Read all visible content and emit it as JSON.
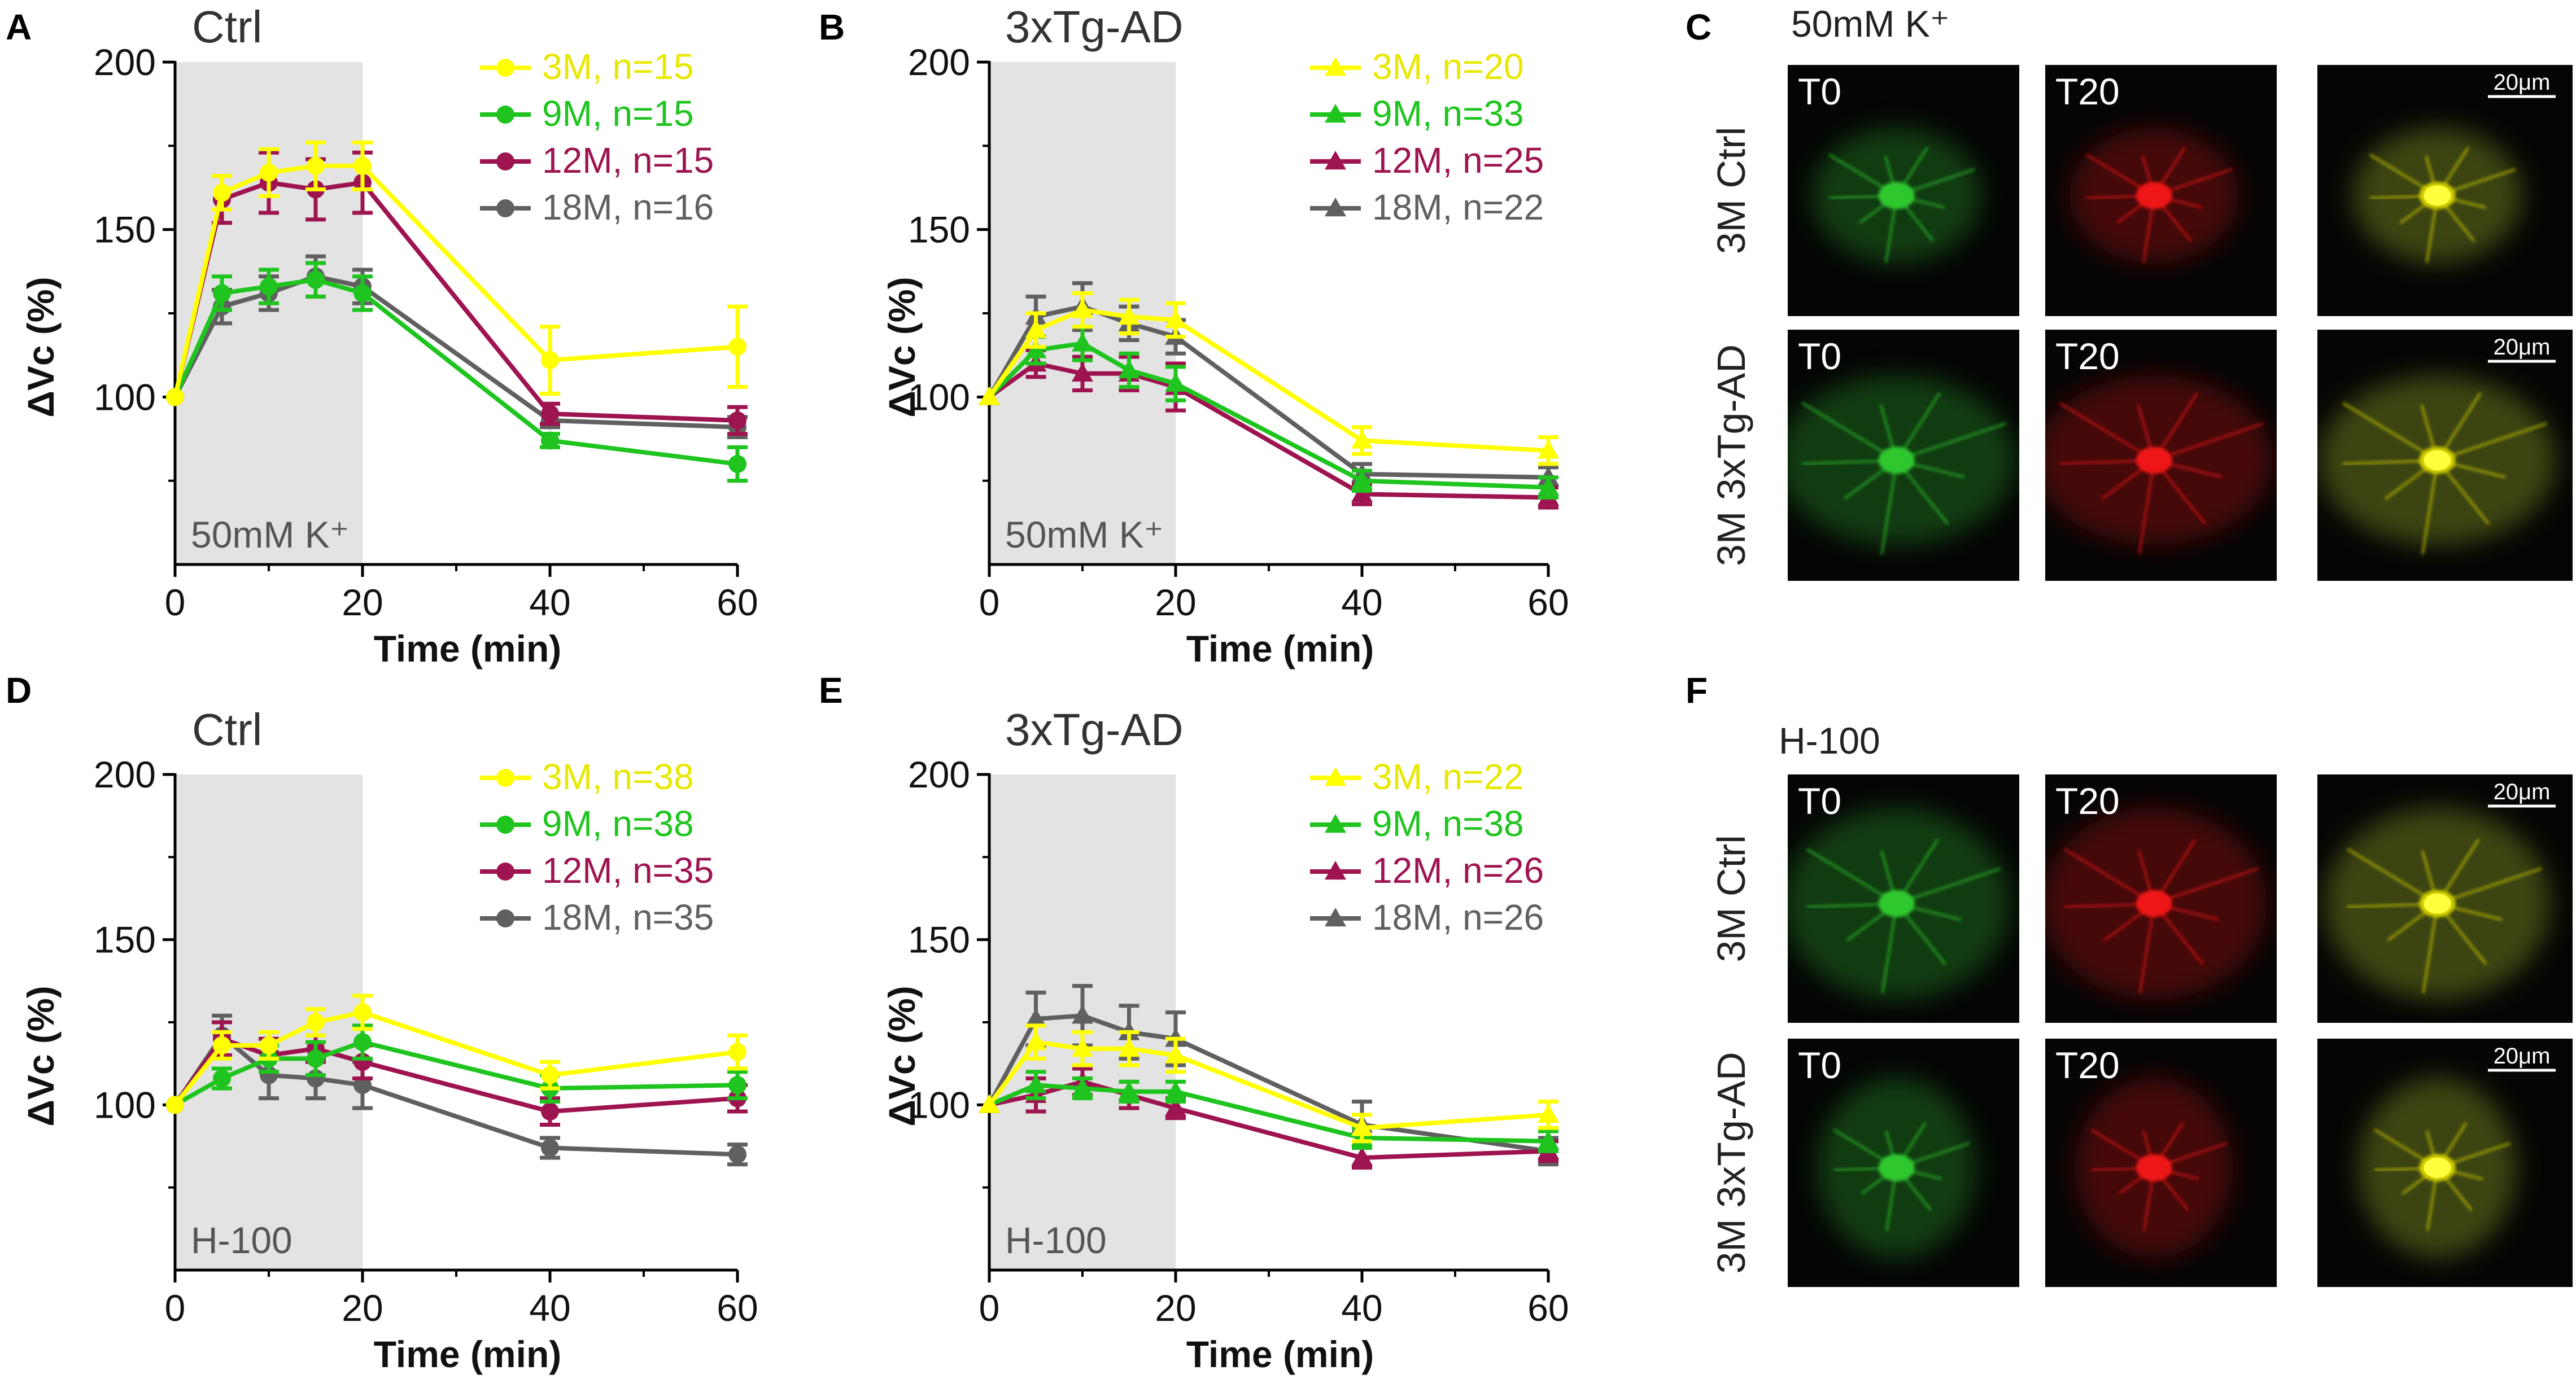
{
  "colors": {
    "3M": "#ffff00",
    "9M": "#1fc41f",
    "12M": "#9e1450",
    "18M": "#606060",
    "stim_band": "#e3e3e3",
    "legend_3M": "#e8e800",
    "green_cell": "#2ec82e",
    "red_cell": "#ee1515",
    "merge_cell": "#d4d000"
  },
  "chart_data": [
    {
      "panel": "A",
      "title": "Ctrl",
      "type": "line",
      "marker": "circle",
      "xlabel": "Time (min)",
      "ylabel": "ΔVc (%)",
      "xlim": [
        0,
        60
      ],
      "ylim": [
        50,
        200
      ],
      "xticks": [
        "0",
        "20",
        "40",
        "60"
      ],
      "yticks": [
        "100",
        "150",
        "200"
      ],
      "stim_label": "50mM K⁺",
      "stim_range": [
        0,
        20
      ],
      "x": [
        0,
        5,
        10,
        15,
        20,
        40,
        60
      ],
      "series": [
        {
          "key": "3M",
          "name": "3M, n=15",
          "values": [
            100,
            161,
            167,
            169,
            169,
            111,
            115
          ],
          "errors": [
            0,
            5,
            7,
            7,
            7,
            10,
            12
          ]
        },
        {
          "key": "9M",
          "name": "9M, n=15",
          "values": [
            100,
            131,
            133,
            135,
            131,
            87,
            80
          ],
          "errors": [
            0,
            5,
            5,
            5,
            5,
            2,
            5
          ]
        },
        {
          "key": "12M",
          "name": "12M, n=15",
          "values": [
            100,
            159,
            164,
            162,
            164,
            95,
            93
          ],
          "errors": [
            0,
            7,
            9,
            9,
            9,
            3,
            4
          ]
        },
        {
          "key": "18M",
          "name": "18M, n=16",
          "values": [
            100,
            127,
            131,
            136,
            133,
            93,
            91
          ],
          "errors": [
            0,
            5,
            5,
            6,
            5,
            2,
            3
          ]
        }
      ]
    },
    {
      "panel": "B",
      "title": "3xTg-AD",
      "type": "line",
      "marker": "triangle",
      "xlabel": "Time (min)",
      "ylabel": "ΔVc (%)",
      "xlim": [
        0,
        60
      ],
      "ylim": [
        50,
        200
      ],
      "xticks": [
        "0",
        "20",
        "40",
        "60"
      ],
      "yticks": [
        "100",
        "150",
        "200"
      ],
      "stim_label": "50mM K⁺",
      "stim_range": [
        0,
        20
      ],
      "x": [
        0,
        5,
        10,
        15,
        20,
        40,
        60
      ],
      "series": [
        {
          "key": "3M",
          "name": "3M, n=20",
          "values": [
            100,
            120,
            126,
            124,
            123,
            87,
            84
          ],
          "errors": [
            0,
            5,
            5,
            5,
            5,
            4,
            4
          ]
        },
        {
          "key": "9M",
          "name": "9M, n=33",
          "values": [
            100,
            114,
            116,
            108,
            104,
            75,
            73
          ],
          "errors": [
            0,
            4,
            5,
            5,
            5,
            3,
            3
          ]
        },
        {
          "key": "12M",
          "name": "12M, n=25",
          "values": [
            100,
            110,
            107,
            107,
            103,
            71,
            70
          ],
          "errors": [
            0,
            4,
            5,
            5,
            7,
            3,
            3
          ]
        },
        {
          "key": "18M",
          "name": "18M, n=22",
          "values": [
            100,
            124,
            127,
            122,
            118,
            77,
            76
          ],
          "errors": [
            0,
            6,
            7,
            5,
            5,
            3,
            3
          ]
        }
      ]
    },
    {
      "panel": "D",
      "title": "Ctrl",
      "type": "line",
      "marker": "circle",
      "xlabel": "Time (min)",
      "ylabel": "ΔVc (%)",
      "xlim": [
        0,
        60
      ],
      "ylim": [
        50,
        200
      ],
      "xticks": [
        "0",
        "20",
        "40",
        "60"
      ],
      "yticks": [
        "100",
        "150",
        "200"
      ],
      "stim_label": "H-100",
      "stim_range": [
        0,
        20
      ],
      "x": [
        0,
        5,
        10,
        15,
        20,
        40,
        60
      ],
      "series": [
        {
          "key": "3M",
          "name": "3M, n=38",
          "values": [
            100,
            118,
            118,
            125,
            128,
            109,
            116
          ],
          "errors": [
            0,
            4,
            4,
            4,
            5,
            4,
            5
          ]
        },
        {
          "key": "9M",
          "name": "9M, n=38",
          "values": [
            100,
            108,
            114,
            114,
            119,
            105,
            106
          ],
          "errors": [
            0,
            3,
            4,
            5,
            5,
            4,
            4
          ]
        },
        {
          "key": "12M",
          "name": "12M, n=35",
          "values": [
            100,
            120,
            115,
            117,
            113,
            98,
            102
          ],
          "errors": [
            0,
            5,
            5,
            4,
            5,
            4,
            4
          ]
        },
        {
          "key": "18M",
          "name": "18M, n=35",
          "values": [
            100,
            121,
            109,
            108,
            106,
            87,
            85
          ],
          "errors": [
            0,
            6,
            7,
            6,
            7,
            3,
            3
          ]
        }
      ]
    },
    {
      "panel": "E",
      "title": "3xTg-AD",
      "type": "line",
      "marker": "triangle",
      "xlabel": "Time (min)",
      "ylabel": "ΔVc (%)",
      "xlim": [
        0,
        60
      ],
      "ylim": [
        50,
        200
      ],
      "xticks": [
        "0",
        "20",
        "40",
        "60"
      ],
      "yticks": [
        "100",
        "150",
        "200"
      ],
      "stim_label": "H-100",
      "stim_range": [
        0,
        20
      ],
      "x": [
        0,
        5,
        10,
        15,
        20,
        40,
        60
      ],
      "series": [
        {
          "key": "3M",
          "name": "3M, n=22",
          "values": [
            100,
            119,
            117,
            117,
            115,
            93,
            97
          ],
          "errors": [
            0,
            5,
            5,
            5,
            5,
            4,
            4
          ]
        },
        {
          "key": "9M",
          "name": "9M, n=38",
          "values": [
            100,
            106,
            105,
            104,
            104,
            90,
            89
          ],
          "errors": [
            0,
            4,
            3,
            3,
            3,
            3,
            3
          ]
        },
        {
          "key": "12M",
          "name": "12M, n=26",
          "values": [
            100,
            103,
            107,
            103,
            99,
            84,
            86
          ],
          "errors": [
            0,
            5,
            4,
            4,
            3,
            3,
            3
          ]
        },
        {
          "key": "18M",
          "name": "18M, n=26",
          "values": [
            100,
            126,
            127,
            122,
            120,
            94,
            86
          ],
          "errors": [
            0,
            8,
            9,
            8,
            8,
            7,
            4
          ]
        }
      ]
    }
  ],
  "image_panels": [
    {
      "panel": "C",
      "stimulus": "50mM K⁺",
      "rows": [
        {
          "label": "3M Ctrl",
          "tiles": [
            "T0",
            "T20",
            ""
          ],
          "scale": "20μm",
          "cell": "ctrl"
        },
        {
          "label": "3M 3xTg-AD",
          "tiles": [
            "T0",
            "T20",
            ""
          ],
          "scale": "20μm",
          "cell": "ad"
        }
      ]
    },
    {
      "panel": "F",
      "stimulus": "H-100",
      "rows": [
        {
          "label": "3M Ctrl",
          "tiles": [
            "T0",
            "T20",
            ""
          ],
          "scale": "20μm",
          "cell": "ctrl2"
        },
        {
          "label": "3M 3xTg-AD",
          "tiles": [
            "T0",
            "T20",
            ""
          ],
          "scale": "20μm",
          "cell": "ad2"
        }
      ]
    }
  ]
}
